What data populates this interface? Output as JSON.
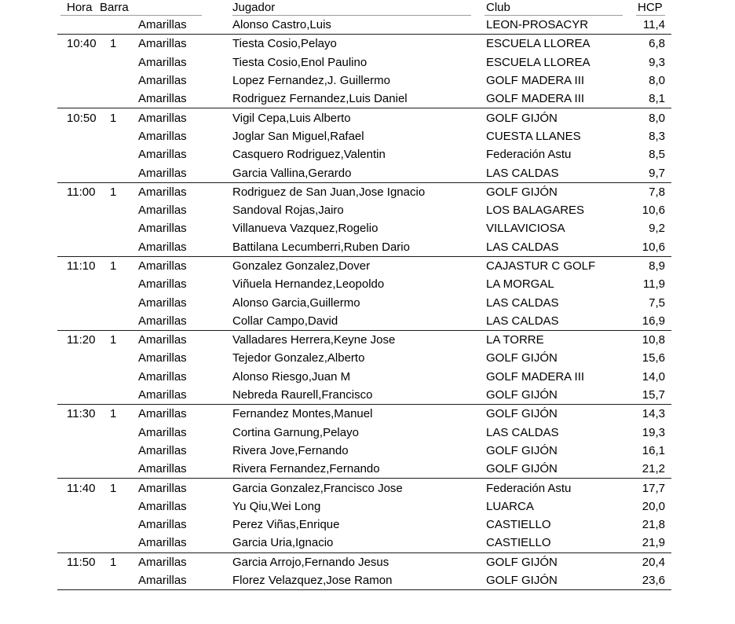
{
  "table": {
    "headers": {
      "hora": "Hora",
      "barra": "Barra",
      "jugador": "Jugador",
      "club": "Club",
      "hcp": "HCP"
    },
    "groups": [
      {
        "hora": "",
        "barra": "",
        "rows": [
          {
            "tee": "Amarillas",
            "jugador": "Alonso Castro,Luis",
            "club": "LEON-PROSACYR",
            "hcp": "11,4"
          }
        ]
      },
      {
        "hora": "10:40",
        "barra": "1",
        "rows": [
          {
            "tee": "Amarillas",
            "jugador": "Tiesta Cosio,Pelayo",
            "club": "ESCUELA LLOREA",
            "hcp": "6,8"
          },
          {
            "tee": "Amarillas",
            "jugador": "Tiesta Cosio,Enol Paulino",
            "club": "ESCUELA LLOREA",
            "hcp": "9,3"
          },
          {
            "tee": "Amarillas",
            "jugador": "Lopez Fernandez,J. Guillermo",
            "club": "GOLF MADERA III",
            "hcp": "8,0"
          },
          {
            "tee": "Amarillas",
            "jugador": "Rodriguez Fernandez,Luis Daniel",
            "club": "GOLF MADERA III",
            "hcp": "8,1"
          }
        ]
      },
      {
        "hora": "10:50",
        "barra": "1",
        "rows": [
          {
            "tee": "Amarillas",
            "jugador": "Vigil Cepa,Luis Alberto",
            "club": "GOLF GIJÓN",
            "hcp": "8,0"
          },
          {
            "tee": "Amarillas",
            "jugador": "Joglar San Miguel,Rafael",
            "club": "CUESTA LLANES",
            "hcp": "8,3"
          },
          {
            "tee": "Amarillas",
            "jugador": "Casquero Rodriguez,Valentin",
            "club": "Federación Astu",
            "hcp": "8,5"
          },
          {
            "tee": "Amarillas",
            "jugador": "Garcia Vallina,Gerardo",
            "club": "LAS CALDAS",
            "hcp": "9,7"
          }
        ]
      },
      {
        "hora": "11:00",
        "barra": "1",
        "rows": [
          {
            "tee": "Amarillas",
            "jugador": "Rodriguez de San Juan,Jose Ignacio",
            "club": "GOLF GIJÓN",
            "hcp": "7,8"
          },
          {
            "tee": "Amarillas",
            "jugador": "Sandoval Rojas,Jairo",
            "club": "LOS BALAGARES",
            "hcp": "10,6"
          },
          {
            "tee": "Amarillas",
            "jugador": "Villanueva Vazquez,Rogelio",
            "club": "VILLAVICIOSA",
            "hcp": "9,2"
          },
          {
            "tee": "Amarillas",
            "jugador": "Battilana Lecumberri,Ruben Dario",
            "club": "LAS CALDAS",
            "hcp": "10,6"
          }
        ]
      },
      {
        "hora": "11:10",
        "barra": "1",
        "rows": [
          {
            "tee": "Amarillas",
            "jugador": "Gonzalez Gonzalez,Dover",
            "club": "CAJASTUR C GOLF",
            "hcp": "8,9"
          },
          {
            "tee": "Amarillas",
            "jugador": "Viñuela Hernandez,Leopoldo",
            "club": "LA MORGAL",
            "hcp": "11,9"
          },
          {
            "tee": "Amarillas",
            "jugador": "Alonso Garcia,Guillermo",
            "club": "LAS CALDAS",
            "hcp": "7,5"
          },
          {
            "tee": "Amarillas",
            "jugador": "Collar Campo,David",
            "club": "LAS CALDAS",
            "hcp": "16,9"
          }
        ]
      },
      {
        "hora": "11:20",
        "barra": "1",
        "rows": [
          {
            "tee": "Amarillas",
            "jugador": "Valladares Herrera,Keyne Jose",
            "club": "LA TORRE",
            "hcp": "10,8"
          },
          {
            "tee": "Amarillas",
            "jugador": "Tejedor Gonzalez,Alberto",
            "club": "GOLF GIJÓN",
            "hcp": "15,6"
          },
          {
            "tee": "Amarillas",
            "jugador": "Alonso Riesgo,Juan M",
            "club": "GOLF MADERA III",
            "hcp": "14,0"
          },
          {
            "tee": "Amarillas",
            "jugador": "Nebreda Raurell,Francisco",
            "club": "GOLF GIJÓN",
            "hcp": "15,7"
          }
        ]
      },
      {
        "hora": "11:30",
        "barra": "1",
        "rows": [
          {
            "tee": "Amarillas",
            "jugador": "Fernandez Montes,Manuel",
            "club": "GOLF GIJÓN",
            "hcp": "14,3"
          },
          {
            "tee": "Amarillas",
            "jugador": "Cortina Garnung,Pelayo",
            "club": "LAS CALDAS",
            "hcp": "19,3"
          },
          {
            "tee": "Amarillas",
            "jugador": "Rivera Jove,Fernando",
            "club": "GOLF GIJÓN",
            "hcp": "16,1"
          },
          {
            "tee": "Amarillas",
            "jugador": "Rivera Fernandez,Fernando",
            "club": "GOLF GIJÓN",
            "hcp": "21,2"
          }
        ]
      },
      {
        "hora": "11:40",
        "barra": "1",
        "rows": [
          {
            "tee": "Amarillas",
            "jugador": "Garcia Gonzalez,Francisco Jose",
            "club": "Federación Astu",
            "hcp": "17,7"
          },
          {
            "tee": "Amarillas",
            "jugador": "Yu Qiu,Wei Long",
            "club": "LUARCA",
            "hcp": "20,0"
          },
          {
            "tee": "Amarillas",
            "jugador": "Perez Viñas,Enrique",
            "club": "CASTIELLO",
            "hcp": "21,8"
          },
          {
            "tee": "Amarillas",
            "jugador": "Garcia Uria,Ignacio",
            "club": "CASTIELLO",
            "hcp": "21,9"
          }
        ]
      },
      {
        "hora": "11:50",
        "barra": "1",
        "rows": [
          {
            "tee": "Amarillas",
            "jugador": "Garcia Arrojo,Fernando Jesus",
            "club": "GOLF GIJÓN",
            "hcp": "20,4"
          },
          {
            "tee": "Amarillas",
            "jugador": "Florez Velazquez,Jose Ramon",
            "club": "GOLF GIJÓN",
            "hcp": "23,6"
          }
        ]
      }
    ]
  },
  "colors": {
    "group_separator": "#1c1c1c",
    "header_underline": "#9c9c9c",
    "text": "#000000",
    "background": "#ffffff"
  }
}
